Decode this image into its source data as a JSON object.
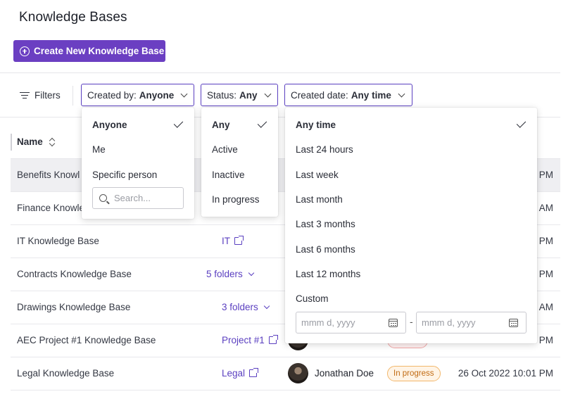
{
  "header": {
    "title": "Knowledge Bases",
    "create_label": "Create New Knowledge Base"
  },
  "filters": {
    "label": "Filters",
    "created_by": {
      "label": "Created by:",
      "value": "Anyone"
    },
    "status": {
      "label": "Status:",
      "value": "Any"
    },
    "created_date": {
      "label": "Created date:",
      "value": "Any time"
    }
  },
  "table": {
    "name_header": "Name",
    "rows": [
      {
        "name": "Benefits Knowl",
        "date": "PM"
      },
      {
        "name": "Finance Knowle",
        "date": "AM"
      },
      {
        "name": "IT Knowledge Base",
        "link": "IT",
        "date": "PM"
      },
      {
        "name": "Contracts Knowledge Base",
        "link": "5 folders",
        "date": "PM"
      },
      {
        "name": "Drawings Knowledge Base",
        "link": "3 folders",
        "date": "AM"
      },
      {
        "name": "AEC Project #1 Knowledge Base",
        "link": "Project #1",
        "date": "PM"
      },
      {
        "name": "Legal Knowledge Base",
        "link": "Legal",
        "owner": "Jonathan Doe",
        "status": "In progress",
        "date": "26 Oct 2022 10:01 PM"
      }
    ]
  },
  "created_by_menu": {
    "options": [
      "Anyone",
      "Me",
      "Specific person"
    ],
    "selected": "Anyone",
    "search_placeholder": "Search..."
  },
  "status_menu": {
    "options": [
      "Any",
      "Active",
      "Inactive",
      "In progress"
    ],
    "selected": "Any"
  },
  "date_menu": {
    "options": [
      "Any time",
      "Last 24 hours",
      "Last week",
      "Last month",
      "Last 3 months",
      "Last 6 months",
      "Last 12 months",
      "Custom"
    ],
    "selected": "Any time",
    "from_placeholder": "mmm d, yyyy",
    "separator": "-",
    "to_placeholder": "mmm d, yyyy"
  },
  "colors": {
    "accent": "#6b3fc2",
    "link": "#5a3fc0",
    "badge_orange": "#f2b76b"
  }
}
